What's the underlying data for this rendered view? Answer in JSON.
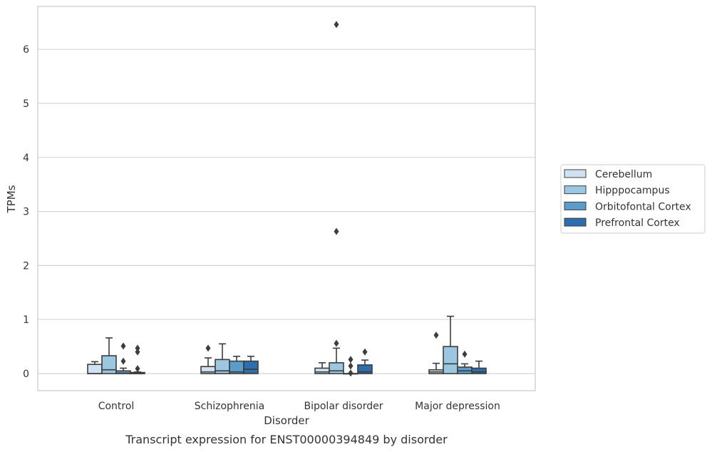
{
  "chart_data": {
    "type": "boxplot",
    "caption": "Transcript expression for ENST00000394849 by disorder",
    "xlabel": "Disorder",
    "ylabel": "TPMs",
    "ylim": [
      -0.32,
      6.8
    ],
    "yticks": [
      0,
      1,
      2,
      3,
      4,
      5,
      6
    ],
    "grid": "horizontal",
    "legend_position": "right",
    "categories": [
      "Control",
      "Schizophrenia",
      "Bipolar disorder",
      "Major depression"
    ],
    "series": [
      {
        "name": "Cerebellum",
        "color": "#d0e2f1",
        "boxes": [
          {
            "min": 0,
            "q1": 0,
            "median": 0.0,
            "q3": 0.17,
            "max": 0.22,
            "outliers": []
          },
          {
            "min": 0,
            "q1": 0,
            "median": 0.03,
            "q3": 0.13,
            "max": 0.29,
            "outliers": [
              0.47
            ]
          },
          {
            "min": 0,
            "q1": 0,
            "median": 0.03,
            "q3": 0.1,
            "max": 0.2,
            "outliers": []
          },
          {
            "min": 0,
            "q1": 0,
            "median": 0.03,
            "q3": 0.07,
            "max": 0.19,
            "outliers": [
              0.71
            ]
          }
        ]
      },
      {
        "name": "Hipppocampus",
        "color": "#9bc7e1",
        "boxes": [
          {
            "min": 0,
            "q1": 0,
            "median": 0.07,
            "q3": 0.33,
            "max": 0.66,
            "outliers": []
          },
          {
            "min": 0,
            "q1": 0,
            "median": 0.05,
            "q3": 0.26,
            "max": 0.55,
            "outliers": []
          },
          {
            "min": 0,
            "q1": 0,
            "median": 0.05,
            "q3": 0.2,
            "max": 0.47,
            "outliers": [
              0.56,
              2.63,
              6.46
            ]
          },
          {
            "min": 0,
            "q1": 0,
            "median": 0.18,
            "q3": 0.5,
            "max": 1.06,
            "outliers": []
          }
        ]
      },
      {
        "name": "Orbitofontal Cortex",
        "color": "#5a9dcd",
        "boxes": [
          {
            "min": 0,
            "q1": 0,
            "median": 0.01,
            "q3": 0.05,
            "max": 0.1,
            "outliers": [
              0.23,
              0.51
            ]
          },
          {
            "min": 0,
            "q1": 0,
            "median": 0.03,
            "q3": 0.23,
            "max": 0.32,
            "outliers": []
          },
          {
            "min": 0,
            "q1": 0,
            "median": 0.0,
            "q3": 0.0,
            "max": 0.0,
            "outliers": [
              0.01,
              0.14,
              0.26
            ]
          },
          {
            "min": 0,
            "q1": 0,
            "median": 0.05,
            "q3": 0.12,
            "max": 0.18,
            "outliers": [
              0.36
            ]
          }
        ]
      },
      {
        "name": "Prefrontal Cortex",
        "color": "#2c6eae",
        "boxes": [
          {
            "min": 0,
            "q1": 0,
            "median": 0.0,
            "q3": 0.02,
            "max": 0.03,
            "outliers": [
              0.09,
              0.4,
              0.47
            ]
          },
          {
            "min": 0,
            "q1": 0,
            "median": 0.08,
            "q3": 0.23,
            "max": 0.32,
            "outliers": []
          },
          {
            "min": 0,
            "q1": 0,
            "median": 0.03,
            "q3": 0.16,
            "max": 0.25,
            "outliers": [
              0.4
            ]
          },
          {
            "min": 0,
            "q1": 0,
            "median": 0.03,
            "q3": 0.1,
            "max": 0.23,
            "outliers": []
          }
        ]
      }
    ]
  }
}
